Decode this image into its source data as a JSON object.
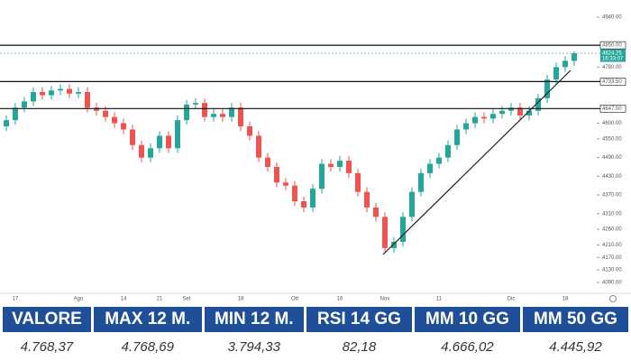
{
  "chart_data": {
    "type": "candlestick",
    "categories": [
      null,
      "17",
      null,
      null,
      null,
      null,
      null,
      null,
      "Ago",
      null,
      null,
      null,
      null,
      "14",
      null,
      null,
      null,
      "21",
      null,
      null,
      "Set",
      null,
      null,
      null,
      null,
      null,
      "18",
      null,
      null,
      null,
      null,
      null,
      "Ott",
      null,
      null,
      null,
      null,
      "16",
      null,
      null,
      null,
      null,
      "Nov",
      null,
      null,
      null,
      null,
      null,
      "11",
      null,
      null,
      null,
      null,
      null,
      null,
      null,
      "Dic",
      null,
      null,
      null,
      null,
      null,
      "18",
      null
    ],
    "open": [
      4590,
      4610,
      4650,
      4670,
      4700,
      4690,
      4705,
      4710,
      4695,
      4700,
      4650,
      4640,
      4620,
      4600,
      4580,
      4530,
      4490,
      4520,
      4560,
      4520,
      4610,
      4660,
      4665,
      4620,
      4630,
      4620,
      4650,
      4590,
      4560,
      4490,
      4460,
      4410,
      4400,
      4350,
      4330,
      4390,
      4470,
      4460,
      4480,
      4440,
      4380,
      4330,
      4300,
      4200,
      4220,
      4300,
      4380,
      4440,
      4470,
      4490,
      4530,
      4580,
      4600,
      4620,
      4615,
      4630,
      4640,
      4650,
      4625,
      4640,
      4680,
      4740,
      4780,
      4800
    ],
    "high": [
      4625,
      4665,
      4685,
      4715,
      4715,
      4720,
      4725,
      4725,
      4715,
      4715,
      4665,
      4655,
      4635,
      4615,
      4595,
      4545,
      4535,
      4575,
      4575,
      4625,
      4675,
      4680,
      4680,
      4645,
      4645,
      4665,
      4665,
      4605,
      4575,
      4505,
      4475,
      4425,
      4415,
      4365,
      4405,
      4485,
      4485,
      4495,
      4495,
      4455,
      4395,
      4345,
      4315,
      4235,
      4315,
      4395,
      4455,
      4485,
      4505,
      4545,
      4595,
      4615,
      4635,
      4635,
      4645,
      4655,
      4665,
      4665,
      4655,
      4695,
      4755,
      4795,
      4815,
      4830
    ],
    "low": [
      4575,
      4595,
      4635,
      4655,
      4675,
      4675,
      4690,
      4680,
      4680,
      4635,
      4625,
      4605,
      4585,
      4565,
      4515,
      4475,
      4475,
      4505,
      4505,
      4505,
      4595,
      4645,
      4605,
      4605,
      4605,
      4605,
      4575,
      4545,
      4475,
      4445,
      4395,
      4385,
      4335,
      4315,
      4315,
      4375,
      4445,
      4445,
      4425,
      4365,
      4315,
      4285,
      4185,
      4185,
      4205,
      4285,
      4365,
      4425,
      4455,
      4475,
      4515,
      4565,
      4585,
      4600,
      4600,
      4615,
      4625,
      4610,
      4610,
      4625,
      4665,
      4725,
      4765,
      4785
    ],
    "close": [
      4610,
      4650,
      4670,
      4700,
      4690,
      4705,
      4710,
      4695,
      4700,
      4650,
      4640,
      4620,
      4600,
      4580,
      4530,
      4490,
      4520,
      4560,
      4520,
      4610,
      4660,
      4665,
      4620,
      4630,
      4620,
      4650,
      4590,
      4560,
      4490,
      4460,
      4410,
      4400,
      4350,
      4330,
      4390,
      4470,
      4460,
      4480,
      4440,
      4380,
      4330,
      4300,
      4200,
      4220,
      4300,
      4380,
      4440,
      4470,
      4490,
      4530,
      4580,
      4600,
      4620,
      4615,
      4630,
      4640,
      4650,
      4625,
      4640,
      4680,
      4740,
      4780,
      4800,
      4824.25
    ],
    "up_color": "#26a69a",
    "down_color": "#ef5350",
    "ylim": [
      4055,
      4995
    ],
    "yticks": [
      {
        "value": 4940,
        "label": "4940.00"
      },
      {
        "value": 4780,
        "label": "4780.00"
      },
      {
        "value": 4600,
        "label": "4600.00"
      },
      {
        "value": 4550,
        "label": "4550.00"
      },
      {
        "value": 4490,
        "label": "4490.00"
      },
      {
        "value": 4430,
        "label": "4430.00"
      },
      {
        "value": 4370,
        "label": "4370.00"
      },
      {
        "value": 4310,
        "label": "4310.00"
      },
      {
        "value": 4260,
        "label": "4260.00"
      },
      {
        "value": 4210,
        "label": "4210.00"
      },
      {
        "value": 4170,
        "label": "4170.00"
      },
      {
        "value": 4130,
        "label": "4130.00"
      },
      {
        "value": 4090,
        "label": "4090.00"
      }
    ],
    "levels": [
      {
        "value": 4850,
        "label": "4850.00"
      },
      {
        "value": 4733.5,
        "label": "4733.50"
      },
      {
        "value": 4647,
        "label": "4647.00"
      }
    ],
    "last_price": {
      "value": 4824.25,
      "label": "4824.25"
    },
    "countdown": "16:33:07"
  },
  "table": {
    "headers": [
      "VALORE",
      "MAX 12 M.",
      "MIN 12 M.",
      "RSI 14 GG",
      "MM 10 GG",
      "MM 50 GG"
    ],
    "values": [
      "4.768,37",
      "4.768,69",
      "3.794,33",
      "82,18",
      "4.666,02",
      "4.445,92"
    ]
  }
}
